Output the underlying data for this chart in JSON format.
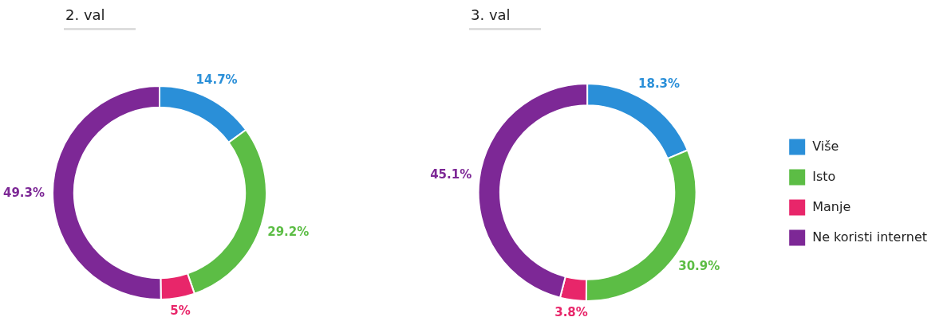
{
  "chart_data": [
    {
      "type": "donut",
      "title": "2. val",
      "values": [
        14.7,
        29.2,
        5,
        49.3
      ],
      "value_labels": [
        "14.7%",
        "29.2%",
        "5%",
        "49.3%"
      ],
      "colors": [
        "#2a8fd8",
        "#5cbd45",
        "#e8266a",
        "#7d2896"
      ],
      "legend": false
    },
    {
      "type": "donut",
      "title": "3. val",
      "categories": [
        "Više",
        "Isto",
        "Manje",
        "Ne koristi internet"
      ],
      "values": [
        18.3,
        30.9,
        3.8,
        45.1
      ],
      "value_labels": [
        "18.3%",
        "30.9%",
        "3.8%",
        "45.1%"
      ],
      "colors": [
        "#2a8fd8",
        "#5cbd45",
        "#e8266a",
        "#7d2896"
      ],
      "legend": "right"
    }
  ]
}
